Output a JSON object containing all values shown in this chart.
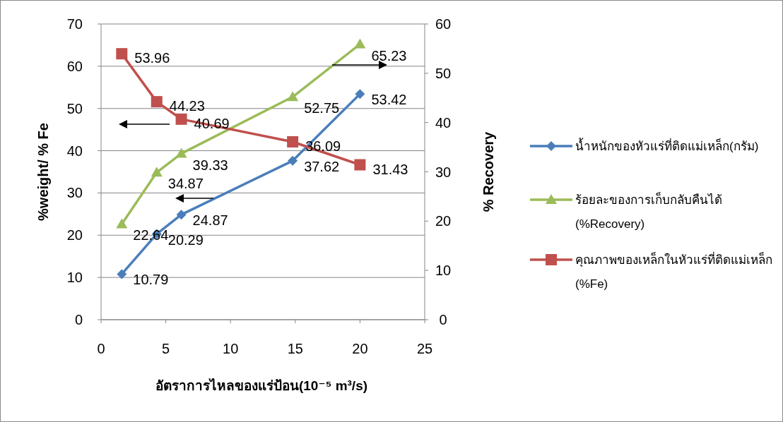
{
  "chart_data": {
    "type": "line",
    "xlabel": "อัตราการไหลของแร่ป้อน(10⁻⁵ m³/s)",
    "ylabel": "%weight/ % Fe",
    "y2label": "% Recovery",
    "xlim": [
      0,
      25
    ],
    "xticks": [
      0,
      5,
      10,
      15,
      20,
      25
    ],
    "ylim": [
      0,
      70
    ],
    "yticks": [
      0,
      10,
      20,
      30,
      40,
      50,
      60,
      70
    ],
    "y2lim": [
      0,
      60
    ],
    "y2ticks": [
      0,
      10,
      20,
      30,
      40,
      50,
      60
    ],
    "grid": "y",
    "legend": "right",
    "data_labels": true,
    "line_style": "solid",
    "series": [
      {
        "name": "น้ำหนักของหัวแร่ที่ติดแม่เหล็ก(กรัม)",
        "color": "#4a7ebb",
        "marker": "diamond",
        "x": [
          1.6,
          4.3,
          6.2,
          14.8,
          20
        ],
        "values": [
          10.79,
          20.29,
          24.87,
          37.62,
          53.42
        ]
      },
      {
        "name": "ร้อยละของการเก็บกลับคืนได้ (%Recovery)",
        "color": "#9bbb59",
        "marker": "triangle",
        "x": [
          1.6,
          4.3,
          6.2,
          14.8,
          20
        ],
        "values": [
          22.64,
          34.87,
          39.33,
          52.75,
          65.23
        ]
      },
      {
        "name": "คุณภาพของเหล็กในหัวแร่ที่ติดแม่เหล็ก (%Fe)",
        "color": "#c0504d",
        "marker": "square",
        "axis": "y2",
        "x": [
          1.6,
          4.3,
          6.2,
          14.8,
          20
        ],
        "values": [
          53.96,
          44.23,
          40.69,
          36.09,
          31.43
        ]
      }
    ]
  }
}
